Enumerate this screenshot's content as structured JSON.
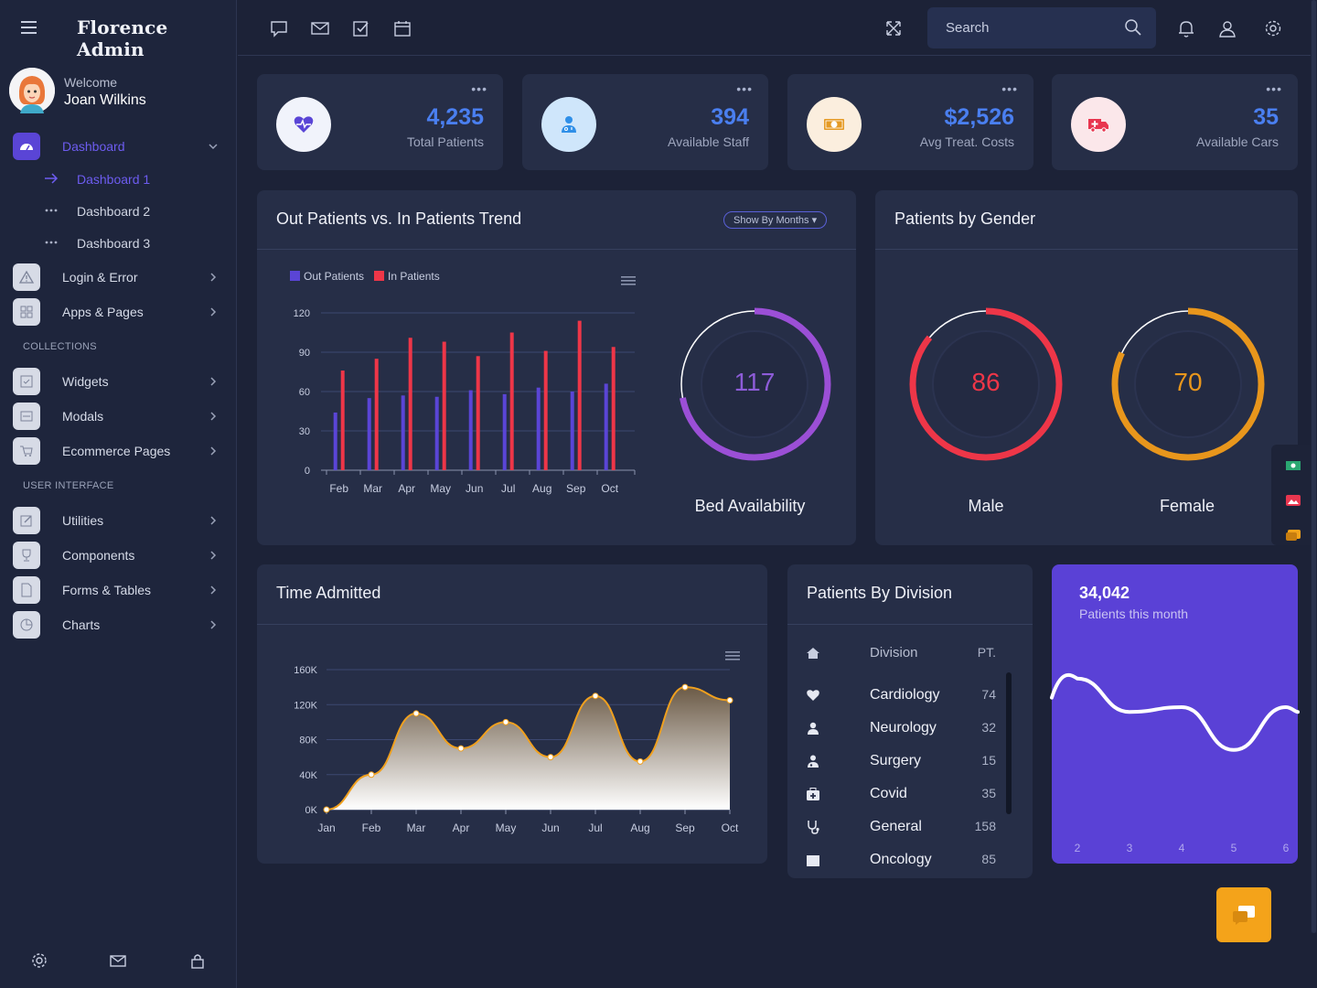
{
  "app": {
    "title": "Florence Admin"
  },
  "user": {
    "welcome": "Welcome",
    "name": "Joan Wilkins"
  },
  "sidebar": {
    "dashboard": {
      "label": "Dashboard",
      "sub": [
        "Dashboard 1",
        "Dashboard 2",
        "Dashboard 3"
      ]
    },
    "login_error": "Login & Error",
    "apps_pages": "Apps & Pages",
    "section_collections": "COLLECTIONS",
    "widgets": "Widgets",
    "modals": "Modals",
    "ecommerce": "Ecommerce Pages",
    "section_ui": "USER INTERFACE",
    "utilities": "Utilities",
    "components": "Components",
    "forms_tables": "Forms & Tables",
    "charts": "Charts"
  },
  "topbar": {
    "search_placeholder": "Search"
  },
  "stats": [
    {
      "value": "4,235",
      "label": "Total Patients",
      "icon": "heartbeat-icon",
      "bg": "#f1f3fb",
      "color": "#5a45d6"
    },
    {
      "value": "394",
      "label": "Available Staff",
      "icon": "doctor-icon",
      "bg": "#cfe6fb",
      "color": "#2f8fe8"
    },
    {
      "value": "$2,526",
      "label": "Avg Treat. Costs",
      "icon": "money-icon",
      "bg": "#fbeede",
      "color": "#e59a24"
    },
    {
      "value": "35",
      "label": "Available Cars",
      "icon": "ambulance-icon",
      "bg": "#fbe7ea",
      "color": "#e8364f"
    }
  ],
  "trend": {
    "title": "Out Patients vs. In Patients Trend",
    "filter": "Show By Months",
    "bed_value": "117",
    "bed_label": "Bed Availability",
    "bed_fraction": 0.72
  },
  "gender": {
    "title": "Patients by Gender",
    "male": {
      "value": "86",
      "label": "Male",
      "fraction": 0.86
    },
    "female": {
      "value": "70",
      "label": "Female",
      "fraction": 0.82
    }
  },
  "admitted": {
    "title": "Time Admitted"
  },
  "division": {
    "title": "Patients By Division",
    "col_division": "Division",
    "col_pt": "PT.",
    "rows": [
      {
        "name": "Cardiology",
        "pt": "74",
        "icon": "heart-icon"
      },
      {
        "name": "Neurology",
        "pt": "32",
        "icon": "user-icon"
      },
      {
        "name": "Surgery",
        "pt": "15",
        "icon": "user-md-icon"
      },
      {
        "name": "Covid",
        "pt": "35",
        "icon": "medkit-icon"
      },
      {
        "name": "General",
        "pt": "158",
        "icon": "stethoscope-icon"
      },
      {
        "name": "Oncology",
        "pt": "85",
        "icon": "hospital-icon"
      }
    ]
  },
  "month_card": {
    "value": "34,042",
    "label": "Patients this month"
  },
  "chart_data": [
    {
      "type": "bar",
      "categories": [
        "Feb",
        "Mar",
        "Apr",
        "May",
        "Jun",
        "Jul",
        "Aug",
        "Sep",
        "Oct"
      ],
      "series": [
        {
          "name": "Out Patients",
          "color": "#5a45d6",
          "values": [
            44,
            55,
            57,
            56,
            61,
            58,
            63,
            60,
            66
          ]
        },
        {
          "name": "In Patients",
          "color": "#ee3648",
          "values": [
            76,
            85,
            101,
            98,
            87,
            105,
            91,
            114,
            94
          ]
        }
      ],
      "yticks": [
        "0",
        "30",
        "60",
        "90",
        "120"
      ],
      "ylim": [
        0,
        120
      ],
      "legend": "top-left"
    },
    {
      "type": "area",
      "categories": [
        "Jan",
        "Feb",
        "Mar",
        "Apr",
        "May",
        "Jun",
        "Jul",
        "Aug",
        "Sep",
        "Oct"
      ],
      "series": [
        {
          "values": [
            0,
            40,
            110,
            70,
            100,
            60,
            130,
            55,
            140,
            125
          ],
          "color": "#f0a01e"
        }
      ],
      "yticks": [
        "0K",
        "40K",
        "80K",
        "120K",
        "160K"
      ],
      "ylim": [
        0,
        160
      ]
    },
    {
      "type": "line",
      "x": [
        "2",
        "3",
        "4",
        "5",
        "6"
      ],
      "values": [
        52,
        38,
        40,
        22,
        40
      ],
      "color": "#ffffff"
    }
  ]
}
